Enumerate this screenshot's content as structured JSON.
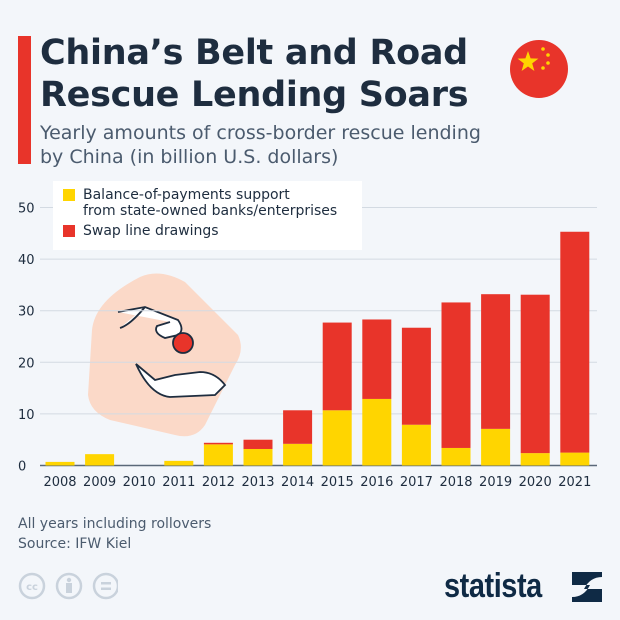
{
  "header": {
    "title_line1": "China’s Belt and Road",
    "title_line2": "Rescue Lending Soars",
    "subtitle_line1": "Yearly amounts of cross-border rescue lending",
    "subtitle_line2": "by China (in billion U.S. dollars)"
  },
  "colors": {
    "accent": "#e8342a",
    "yellow": "#ffd500",
    "red": "#e8342a",
    "background": "#f3f6fa"
  },
  "chart_data": {
    "type": "bar",
    "stacked": true,
    "categories": [
      "2008",
      "2009",
      "2010",
      "2011",
      "2012",
      "2013",
      "2014",
      "2015",
      "2016",
      "2017",
      "2018",
      "2019",
      "2020",
      "2021"
    ],
    "series": [
      {
        "name": "Balance-of-payments support from state-owned banks/enterprises",
        "color": "#ffd500",
        "values": [
          0.7,
          2.2,
          0,
          0.9,
          4.1,
          3.2,
          4.2,
          10.7,
          12.9,
          7.9,
          3.4,
          7.1,
          2.4,
          2.5
        ]
      },
      {
        "name": "Swap line drawings",
        "color": "#e8342a",
        "values": [
          0,
          0,
          0,
          0,
          0.3,
          1.8,
          6.5,
          17.0,
          15.4,
          18.8,
          28.2,
          26.1,
          30.7,
          42.8
        ]
      }
    ],
    "yticks": [
      0,
      10,
      20,
      30,
      40,
      50
    ],
    "ylim": [
      0,
      50
    ],
    "grid": true,
    "legend_position": "top-left"
  },
  "legend": {
    "item1_line1": "Balance-of-payments support",
    "item1_line2": "from state-owned banks/enterprises",
    "item2": "Swap line drawings"
  },
  "footer": {
    "note": "All years including rollovers",
    "source": "Source: IFW Kiel",
    "brand": "statista"
  },
  "icons": [
    "china-flag-icon",
    "hand-coin-illustration",
    "cc-icon",
    "by-icon",
    "nd-icon",
    "statista-logo-icon"
  ]
}
